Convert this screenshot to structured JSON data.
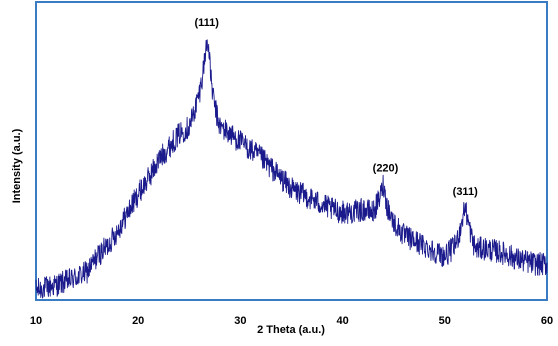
{
  "chart_data": {
    "type": "line",
    "title": "",
    "xlabel": "2 Theta (a.u.)",
    "ylabel": "Intensity (a.u.)",
    "xlim": [
      10,
      60
    ],
    "ylim": [
      0,
      100
    ],
    "x_ticks": [
      "10",
      "20",
      "30",
      "40",
      "50",
      "60"
    ],
    "y_ticks": [],
    "grid": false,
    "legend": "none",
    "colors": {
      "series": "#1a1a8c",
      "frame": "#3a7cc4",
      "axis": "#000000"
    },
    "series": [
      {
        "x": [
          10,
          12,
          14,
          15,
          16,
          17,
          18,
          19,
          20,
          21,
          22,
          23,
          24,
          25,
          25.5,
          26,
          26.3,
          26.6,
          26.8,
          27,
          27.3,
          27.7,
          28,
          29,
          30,
          31,
          32,
          33,
          34,
          35,
          36,
          37,
          38,
          39,
          40,
          41,
          42,
          43,
          43.6,
          44,
          44.3,
          44.6,
          45,
          46,
          47,
          48,
          49,
          50,
          51,
          51.5,
          51.8,
          52,
          52.3,
          52.7,
          53,
          54,
          55,
          56,
          57,
          58,
          59,
          60
        ],
        "y": [
          3,
          5,
          8,
          10,
          16,
          20,
          26,
          33,
          40,
          46,
          53,
          58,
          63,
          66,
          72,
          79,
          86,
          95,
          100,
          90,
          78,
          70,
          66,
          63,
          60,
          57,
          54,
          50,
          46,
          42,
          40,
          38,
          36,
          34,
          33,
          33,
          34,
          33,
          38,
          44,
          36,
          33,
          29,
          24,
          22,
          20,
          18,
          16,
          20,
          26,
          32,
          35,
          29,
          22,
          19,
          19,
          18,
          17,
          15,
          14,
          13,
          13
        ]
      }
    ],
    "annotations": [
      {
        "text": "(111)",
        "x": 26.7,
        "y": 100
      },
      {
        "text": "(220)",
        "x": 44.2,
        "y": 44
      },
      {
        "text": "(311)",
        "x": 52.0,
        "y": 35
      }
    ]
  }
}
